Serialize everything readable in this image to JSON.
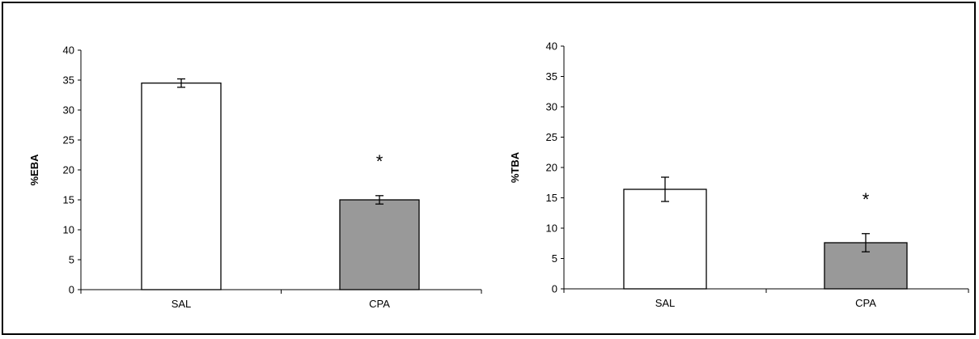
{
  "chart_data": [
    {
      "type": "bar",
      "categories": [
        "SAL",
        "CPA"
      ],
      "values": [
        34.5,
        15.0
      ],
      "errors": [
        0.7,
        0.7
      ],
      "significance": [
        "",
        "*"
      ],
      "bar_colors": [
        "#ffffff",
        "#999999"
      ],
      "ylabel": "%EBA",
      "ylim": [
        0,
        40
      ],
      "yticks": [
        "0",
        "5",
        "10",
        "15",
        "20",
        "25",
        "30",
        "35",
        "40"
      ],
      "grid": false,
      "legend": "none"
    },
    {
      "type": "bar",
      "categories": [
        "SAL",
        "CPA"
      ],
      "values": [
        16.4,
        7.6
      ],
      "errors": [
        2.0,
        1.5
      ],
      "significance": [
        "",
        "*"
      ],
      "bar_colors": [
        "#ffffff",
        "#999999"
      ],
      "ylabel": "%TBA",
      "ylim": [
        0,
        40
      ],
      "yticks": [
        "0",
        "5",
        "10",
        "15",
        "20",
        "25",
        "30",
        "35",
        "40"
      ],
      "grid": false,
      "legend": "none"
    }
  ]
}
